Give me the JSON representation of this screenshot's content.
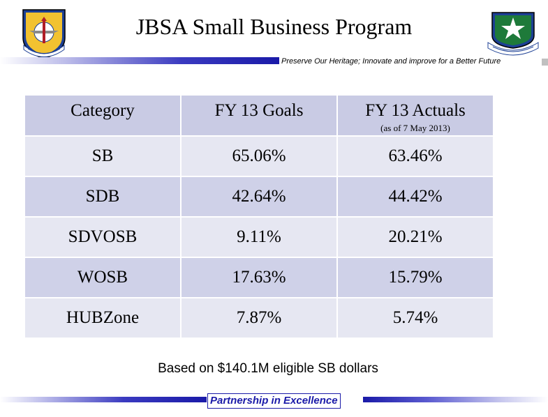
{
  "slide": {
    "title": "JBSA Small Business Program",
    "tagline": "Preserve Our Heritage; Innovate and improve for a Better Future",
    "note": "Based on $140.1M eligible SB dollars",
    "footer": "Partnership in Excellence"
  },
  "colors": {
    "header_row": "#c9cbe4",
    "row_light": "#e6e7f2",
    "row_dark": "#cfd1e8",
    "highlight_red": "#e8192c",
    "accent_blue": "#1a1aa8"
  },
  "icons": {
    "left_logo": "air-education-training-command-emblem",
    "right_logo": "502nd-air-base-wing-emblem"
  },
  "table": {
    "headers": {
      "category": "Category",
      "goals": "FY 13 Goals",
      "actuals": "FY 13 Actuals",
      "actuals_note": "(as of 7 May 2013)"
    },
    "rows": [
      {
        "category": "SB",
        "goal": "65.06%",
        "actual": "63.46%",
        "actual_color": "red"
      },
      {
        "category": "SDB",
        "goal": "42.64%",
        "actual": "44.42%",
        "actual_color": "black"
      },
      {
        "category": "SDVOSB",
        "goal": "9.11%",
        "actual": "20.21%",
        "actual_color": "black"
      },
      {
        "category": "WOSB",
        "goal": "17.63%",
        "actual": "15.79%",
        "actual_color": "red"
      },
      {
        "category": "HUBZone",
        "goal": "7.87%",
        "actual": "5.74%",
        "actual_color": "red"
      }
    ]
  }
}
